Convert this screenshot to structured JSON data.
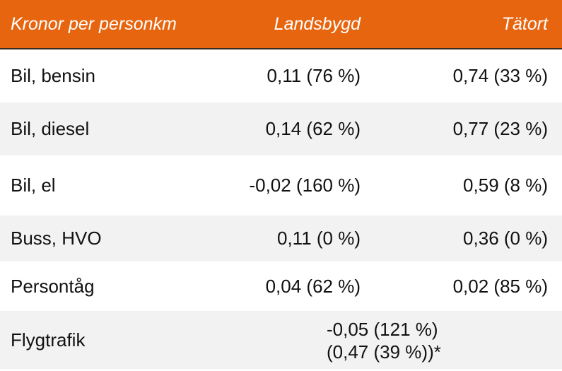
{
  "header": [
    "Kronor per personkm",
    "Landsbygd",
    "Tätort"
  ],
  "rows": [
    [
      "Bil, bensin",
      "0,11 (76 %)",
      "0,74 (33 %)"
    ],
    [
      "Bil, diesel",
      "0,14 (62 %)",
      "0,77 (23 %)"
    ],
    [
      "Bil, el",
      "-0,02 (160 %)",
      "0,59 (8 %)"
    ],
    [
      "Buss, HVO",
      "0,11 (0 %)",
      "0,36 (0 %)"
    ],
    [
      "Persontåg",
      "0,04 (62 %)",
      "0,02 (85 %)"
    ]
  ],
  "merged_row": {
    "label": "Flygtrafik",
    "lines": [
      "-0,05 (121 %)",
      "(0,47 (39 %))*"
    ]
  }
}
